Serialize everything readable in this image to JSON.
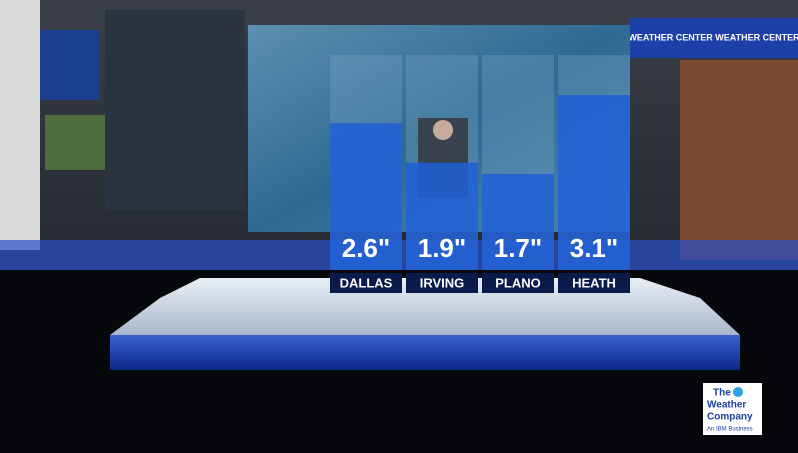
{
  "chart_data": {
    "type": "bar",
    "categories": [
      "DALLAS",
      "IRVING",
      "PLANO",
      "HEATH"
    ],
    "values": [
      2.6,
      1.9,
      1.7,
      3.1
    ],
    "value_labels": [
      "2.6\"",
      "1.9\"",
      "1.7\"",
      "3.1\""
    ],
    "color": "#1f5fd6"
  },
  "studio": {
    "sign": "WEATHER CENTER  WEATHER CENTER",
    "logo": {
      "line1": "The",
      "line2": "Weather",
      "line3": "Company",
      "tagline": "An IBM Business"
    }
  }
}
